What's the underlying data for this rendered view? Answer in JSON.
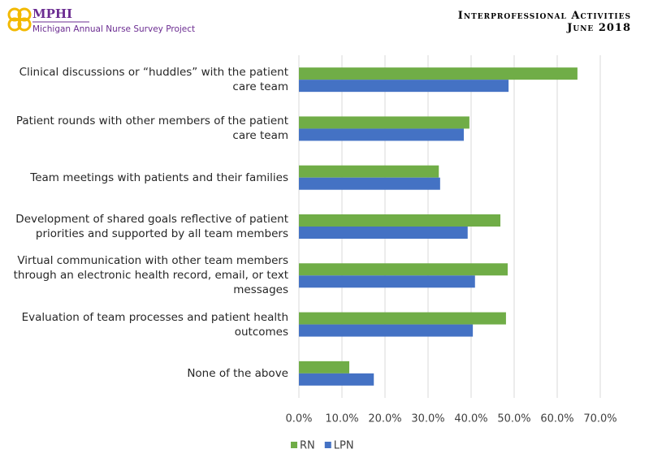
{
  "header": {
    "logo": "MPHI",
    "project": "Michigan Annual Nurse Survey Project",
    "title": "Interprofessional Activities",
    "subtitle": "June 2018"
  },
  "chart_data": {
    "type": "bar",
    "orientation": "horizontal",
    "categories": [
      "Clinical discussions or “huddles” with the patient care team",
      "Patient rounds with other members of the patient care team",
      "Team meetings with patients and their families",
      "Development of shared goals reflective of patient priorities and supported by all team members",
      "Virtual communication with other team members through an electronic health record, email, or text messages",
      "Evaluation of team processes and patient health outcomes",
      "None of the above"
    ],
    "series": [
      {
        "name": "RN",
        "color": "#70ad47",
        "values": [
          64.7,
          39.6,
          32.5,
          46.8,
          48.5,
          48.1,
          11.7
        ]
      },
      {
        "name": "LPN",
        "color": "#4472c4",
        "values": [
          48.7,
          38.3,
          32.8,
          39.2,
          40.9,
          40.4,
          17.4
        ]
      }
    ],
    "xlim": [
      0,
      70
    ],
    "xticks": [
      {
        "value": 0,
        "label": "0.0%"
      },
      {
        "value": 10,
        "label": "10.0%"
      },
      {
        "value": 20,
        "label": "20.0%"
      },
      {
        "value": 30,
        "label": "30.0%"
      },
      {
        "value": 40,
        "label": "40.0%"
      },
      {
        "value": 50,
        "label": "50.0%"
      },
      {
        "value": 60,
        "label": "60.0%"
      },
      {
        "value": 70,
        "label": "70.0%"
      }
    ],
    "grid": true,
    "legend": "bottom"
  }
}
